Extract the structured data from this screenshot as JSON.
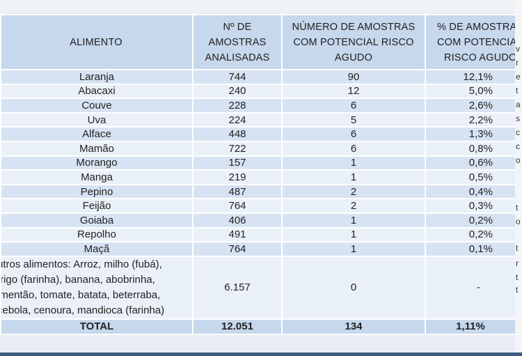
{
  "table": {
    "headers": {
      "alimento": "ALIMENTO",
      "amostras": [
        "Nº DE",
        "AMOSTRAS",
        "ANALISADAS"
      ],
      "potencial": [
        "NÚMERO DE AMOSTRAS",
        "COM POTENCIAL RISCO",
        "AGUDO"
      ],
      "percentual": [
        "% DE AMOSTRAS",
        "COM POTENCIA",
        "RISCO AGUDO"
      ]
    },
    "rows": [
      {
        "alimento": "Laranja",
        "amostras": "744",
        "potencial": "90",
        "percentual": "12,1%"
      },
      {
        "alimento": "Abacaxi",
        "amostras": "240",
        "potencial": "12",
        "percentual": "5,0%"
      },
      {
        "alimento": "Couve",
        "amostras": "228",
        "potencial": "6",
        "percentual": "2,6%"
      },
      {
        "alimento": "Uva",
        "amostras": "224",
        "potencial": "5",
        "percentual": "2,2%"
      },
      {
        "alimento": "Alface",
        "amostras": "448",
        "potencial": "6",
        "percentual": "1,3%"
      },
      {
        "alimento": "Mamão",
        "amostras": "722",
        "potencial": "6",
        "percentual": "0,8%"
      },
      {
        "alimento": "Morango",
        "amostras": "157",
        "potencial": "1",
        "percentual": "0,6%"
      },
      {
        "alimento": "Manga",
        "amostras": "219",
        "potencial": "1",
        "percentual": "0,5%"
      },
      {
        "alimento": "Pepino",
        "amostras": "487",
        "potencial": "2",
        "percentual": "0,4%"
      },
      {
        "alimento": "Feijão",
        "amostras": "764",
        "potencial": "2",
        "percentual": "0,3%"
      },
      {
        "alimento": "Goiaba",
        "amostras": "406",
        "potencial": "1",
        "percentual": "0,2%"
      },
      {
        "alimento": "Repolho",
        "amostras": "491",
        "potencial": "1",
        "percentual": "0,2%"
      },
      {
        "alimento": "Maçã",
        "amostras": "764",
        "potencial": "1",
        "percentual": "0,1%"
      }
    ],
    "outros": {
      "lines": [
        "utros alimentos: Arroz, milho (fubá),",
        "trigo (farinha), banana, abobrinha,",
        "imentão, tomate, batata, beterraba,",
        "cebola, cenoura, mandioca (farinha)"
      ],
      "amostras": "6.157",
      "potencial": "0",
      "percentual": "-"
    },
    "total": {
      "label": "TOTAL",
      "amostras": "12.051",
      "potencial": "134",
      "percentual": "1,11%"
    }
  },
  "edge_glyphs": [
    "v",
    "r",
    "e",
    "t",
    "a",
    "s",
    "c",
    "c",
    "o",
    "t",
    "o",
    "t",
    "r",
    "t",
    "t"
  ]
}
